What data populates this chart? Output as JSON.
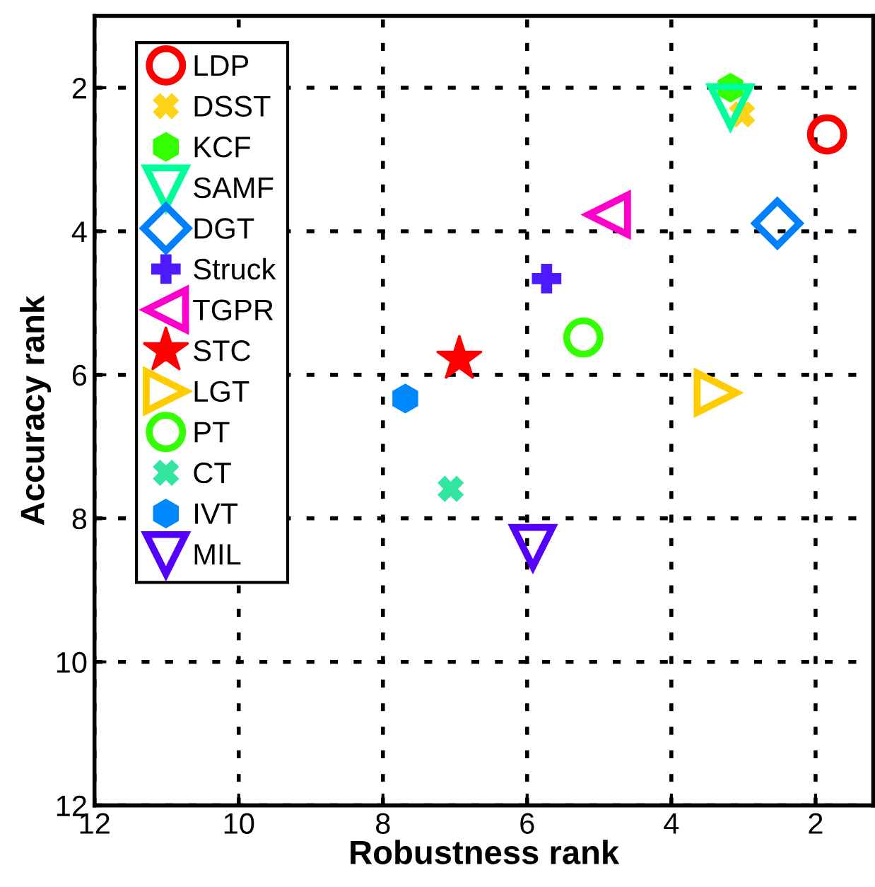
{
  "chart_data": {
    "type": "scatter",
    "xlabel": "Robustness rank",
    "ylabel": "Accuracy rank",
    "xlim": [
      12,
      1.2
    ],
    "ylim": [
      12,
      1
    ],
    "xticks": [
      12,
      10,
      8,
      6,
      4,
      2
    ],
    "yticks": [
      2,
      4,
      6,
      8,
      10,
      12
    ],
    "grid": true,
    "legend": "top left",
    "series": [
      {
        "name": "LDP",
        "color": "#ff0000",
        "marker": "circle",
        "x": [
          1.84
        ],
        "values": [
          2.65
        ]
      },
      {
        "name": "DSST",
        "color": "#ffd21a",
        "marker": "x",
        "x": [
          3.02
        ],
        "values": [
          2.37
        ]
      },
      {
        "name": "KCF",
        "color": "#33ff00",
        "x": [
          3.18
        ],
        "values": [
          2.0
        ]
      },
      {
        "name": "SAMF",
        "color": "#00ff99",
        "marker": "triangle_down",
        "x": [
          3.18
        ],
        "values": [
          2.26
        ]
      },
      {
        "name": "DGT",
        "color": "#0080ff",
        "marker": "diamond",
        "x": [
          2.53
        ],
        "values": [
          3.89
        ]
      },
      {
        "name": "Struck",
        "color": "#4d1aff",
        "marker": "plus",
        "x": [
          5.73
        ],
        "values": [
          4.66
        ]
      },
      {
        "name": "TGPR",
        "color": "#ff00cc",
        "marker": "triangle_left",
        "x": [
          4.88
        ],
        "values": [
          3.77
        ]
      },
      {
        "name": "STC",
        "color": "#ff0000",
        "marker": "star",
        "x": [
          6.94
        ],
        "values": [
          5.78
        ]
      },
      {
        "name": "LGT",
        "color": "#ffcc00",
        "marker": "triangle_right",
        "x": [
          3.37
        ],
        "values": [
          6.25
        ]
      },
      {
        "name": "PT",
        "color": "#33ff00",
        "marker": "circle",
        "x": [
          5.22
        ],
        "values": [
          5.48
        ]
      },
      {
        "name": "CT",
        "color": "#33e6a0",
        "marker": "x",
        "x": [
          7.06
        ],
        "values": [
          7.59
        ]
      },
      {
        "name": "IVT",
        "color": "#0088ff",
        "x": [
          7.69
        ],
        "values": [
          6.33
        ]
      },
      {
        "name": "MIL",
        "color": "#5500ff",
        "marker": "triangle_down",
        "x": [
          5.92
        ],
        "values": [
          8.4
        ]
      }
    ]
  }
}
